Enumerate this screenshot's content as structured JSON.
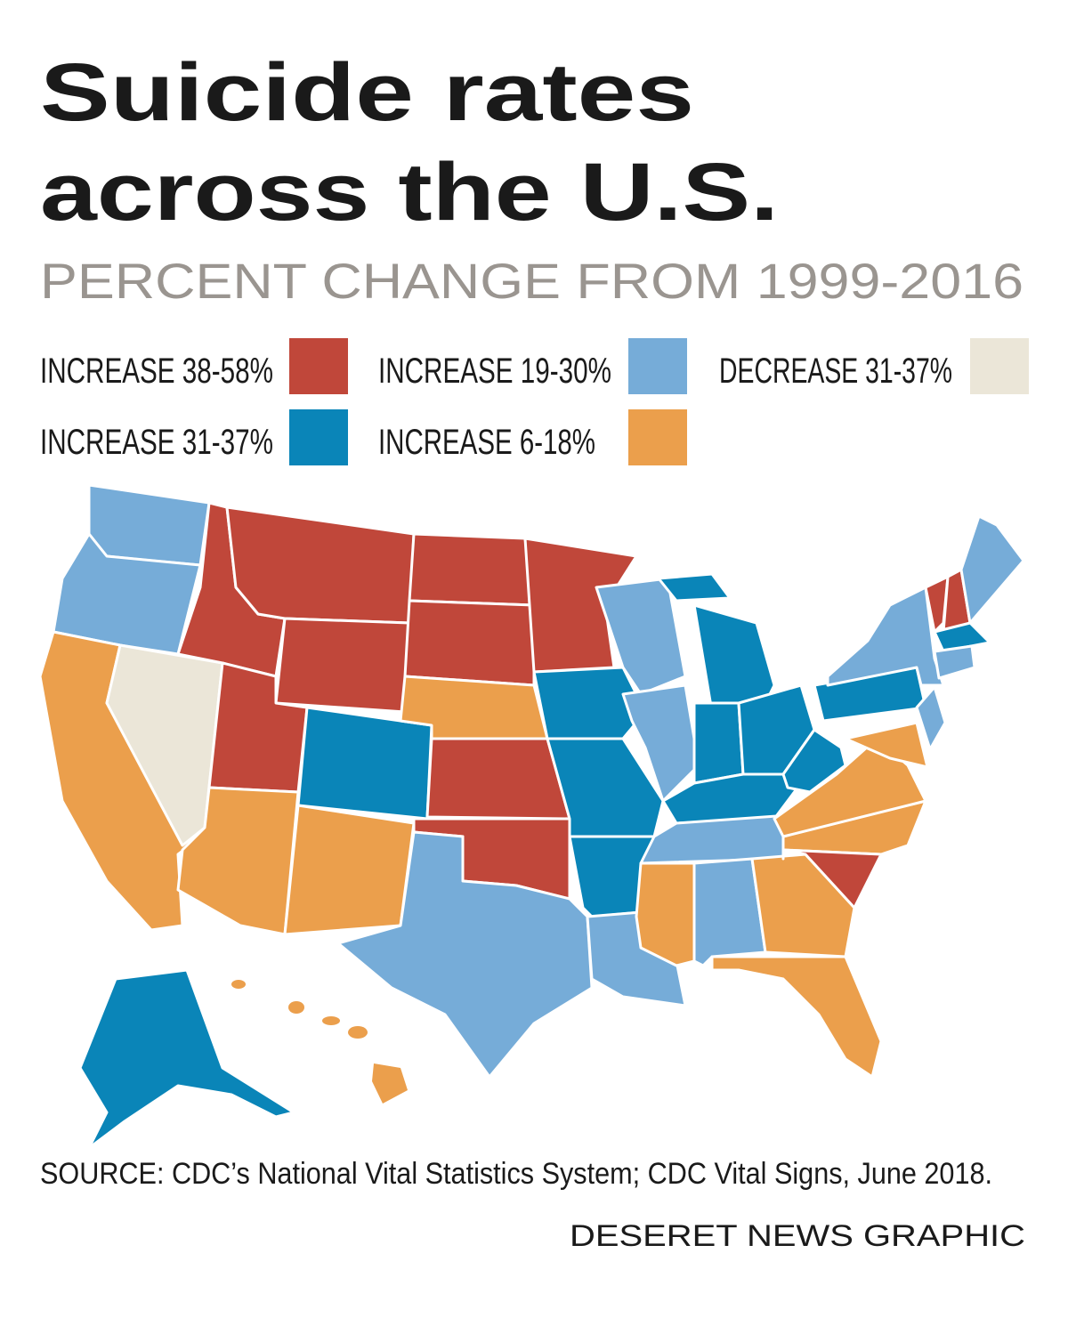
{
  "header": {
    "title": [
      "Suicide rates",
      "across the U.S."
    ],
    "subtitle": "PERCENT CHANGE FROM 1999-2016"
  },
  "legend": [
    {
      "label": "INCREASE 38-58%",
      "color": "#c0473a"
    },
    {
      "label": "INCREASE 19-30%",
      "color": "#76acd8"
    },
    {
      "label": "DECREASE 31-37%",
      "color": "#ebe6d8"
    },
    {
      "label": "INCREASE 31-37%",
      "color": "#0a85b8"
    },
    {
      "label": "INCREASE 6-18%",
      "color": "#eb9f4c"
    }
  ],
  "footer": {
    "source": "SOURCE: CDC’s National Vital Statistics System; CDC Vital Signs, June 2018.",
    "credit": "DESERET NEWS GRAPHIC"
  }
}
